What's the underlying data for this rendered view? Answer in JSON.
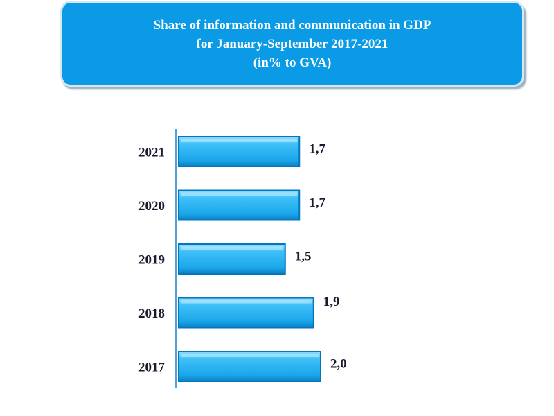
{
  "chart_data": {
    "type": "bar",
    "orientation": "horizontal",
    "title_lines": [
      "Share of information and communication in GDP",
      "for January-September 2017-2021",
      "(in% to GVA)"
    ],
    "categories": [
      "2021",
      "2020",
      "2019",
      "2018",
      "2017"
    ],
    "values": [
      1.7,
      1.7,
      1.5,
      1.9,
      2.0
    ],
    "value_labels": [
      "1,7",
      "1,7",
      "1,5",
      "1,9",
      "2,0"
    ],
    "xlim": [
      0,
      2.0
    ],
    "xlabel": "",
    "ylabel": "",
    "grid": false,
    "colors": {
      "bar": "#29b6f6",
      "bar_dark": "#0277bd",
      "axis": "#4fa3d9",
      "title_bg": "#0a9ae6"
    }
  }
}
